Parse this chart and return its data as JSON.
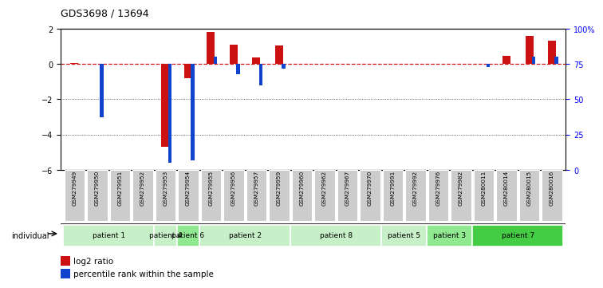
{
  "title": "GDS3698 / 13694",
  "samples": [
    "GSM279949",
    "GSM279950",
    "GSM279951",
    "GSM279952",
    "GSM279953",
    "GSM279954",
    "GSM279955",
    "GSM279956",
    "GSM279957",
    "GSM279959",
    "GSM279960",
    "GSM279962",
    "GSM279967",
    "GSM279970",
    "GSM279991",
    "GSM279992",
    "GSM279976",
    "GSM279982",
    "GSM280011",
    "GSM280014",
    "GSM280015",
    "GSM280016"
  ],
  "log2_ratio": [
    0.05,
    0.0,
    0.0,
    0.0,
    -4.7,
    -0.8,
    1.8,
    1.1,
    0.35,
    1.05,
    0.0,
    0.0,
    0.0,
    0.0,
    0.0,
    0.0,
    0.0,
    0.0,
    0.0,
    0.45,
    1.6,
    1.3
  ],
  "percentile_rank": [
    null,
    37.0,
    null,
    null,
    5.0,
    7.0,
    80.0,
    68.0,
    60.0,
    72.0,
    null,
    null,
    null,
    null,
    null,
    null,
    null,
    null,
    73.0,
    null,
    80.0,
    80.0
  ],
  "patients": [
    {
      "label": "patient 1",
      "start": 0,
      "end": 3,
      "color": "#c8f0c8"
    },
    {
      "label": "patient 4",
      "start": 4,
      "end": 4,
      "color": "#c8f0c8"
    },
    {
      "label": "patient 6",
      "start": 5,
      "end": 5,
      "color": "#90e890"
    },
    {
      "label": "patient 2",
      "start": 6,
      "end": 9,
      "color": "#c8f0c8"
    },
    {
      "label": "patient 8",
      "start": 10,
      "end": 13,
      "color": "#c8f0c8"
    },
    {
      "label": "patient 5",
      "start": 14,
      "end": 15,
      "color": "#c8f0c8"
    },
    {
      "label": "patient 3",
      "start": 16,
      "end": 17,
      "color": "#90e890"
    },
    {
      "label": "patient 7",
      "start": 18,
      "end": 21,
      "color": "#44cc44"
    }
  ],
  "ylim_left": [
    -6,
    2
  ],
  "ylim_right": [
    0,
    100
  ],
  "yticks_left": [
    -6,
    -4,
    -2,
    0,
    2
  ],
  "yticks_right": [
    0,
    25,
    50,
    75,
    100
  ],
  "ytick_right_labels": [
    "0",
    "25",
    "50",
    "75",
    "100%"
  ],
  "bar_color_red": "#cc1111",
  "bar_color_blue": "#1144cc",
  "hline_color": "#cc1111",
  "grid_color": "#333333",
  "tick_bg": "#cccccc",
  "legend_red": "log2 ratio",
  "legend_blue": "percentile rank within the sample"
}
